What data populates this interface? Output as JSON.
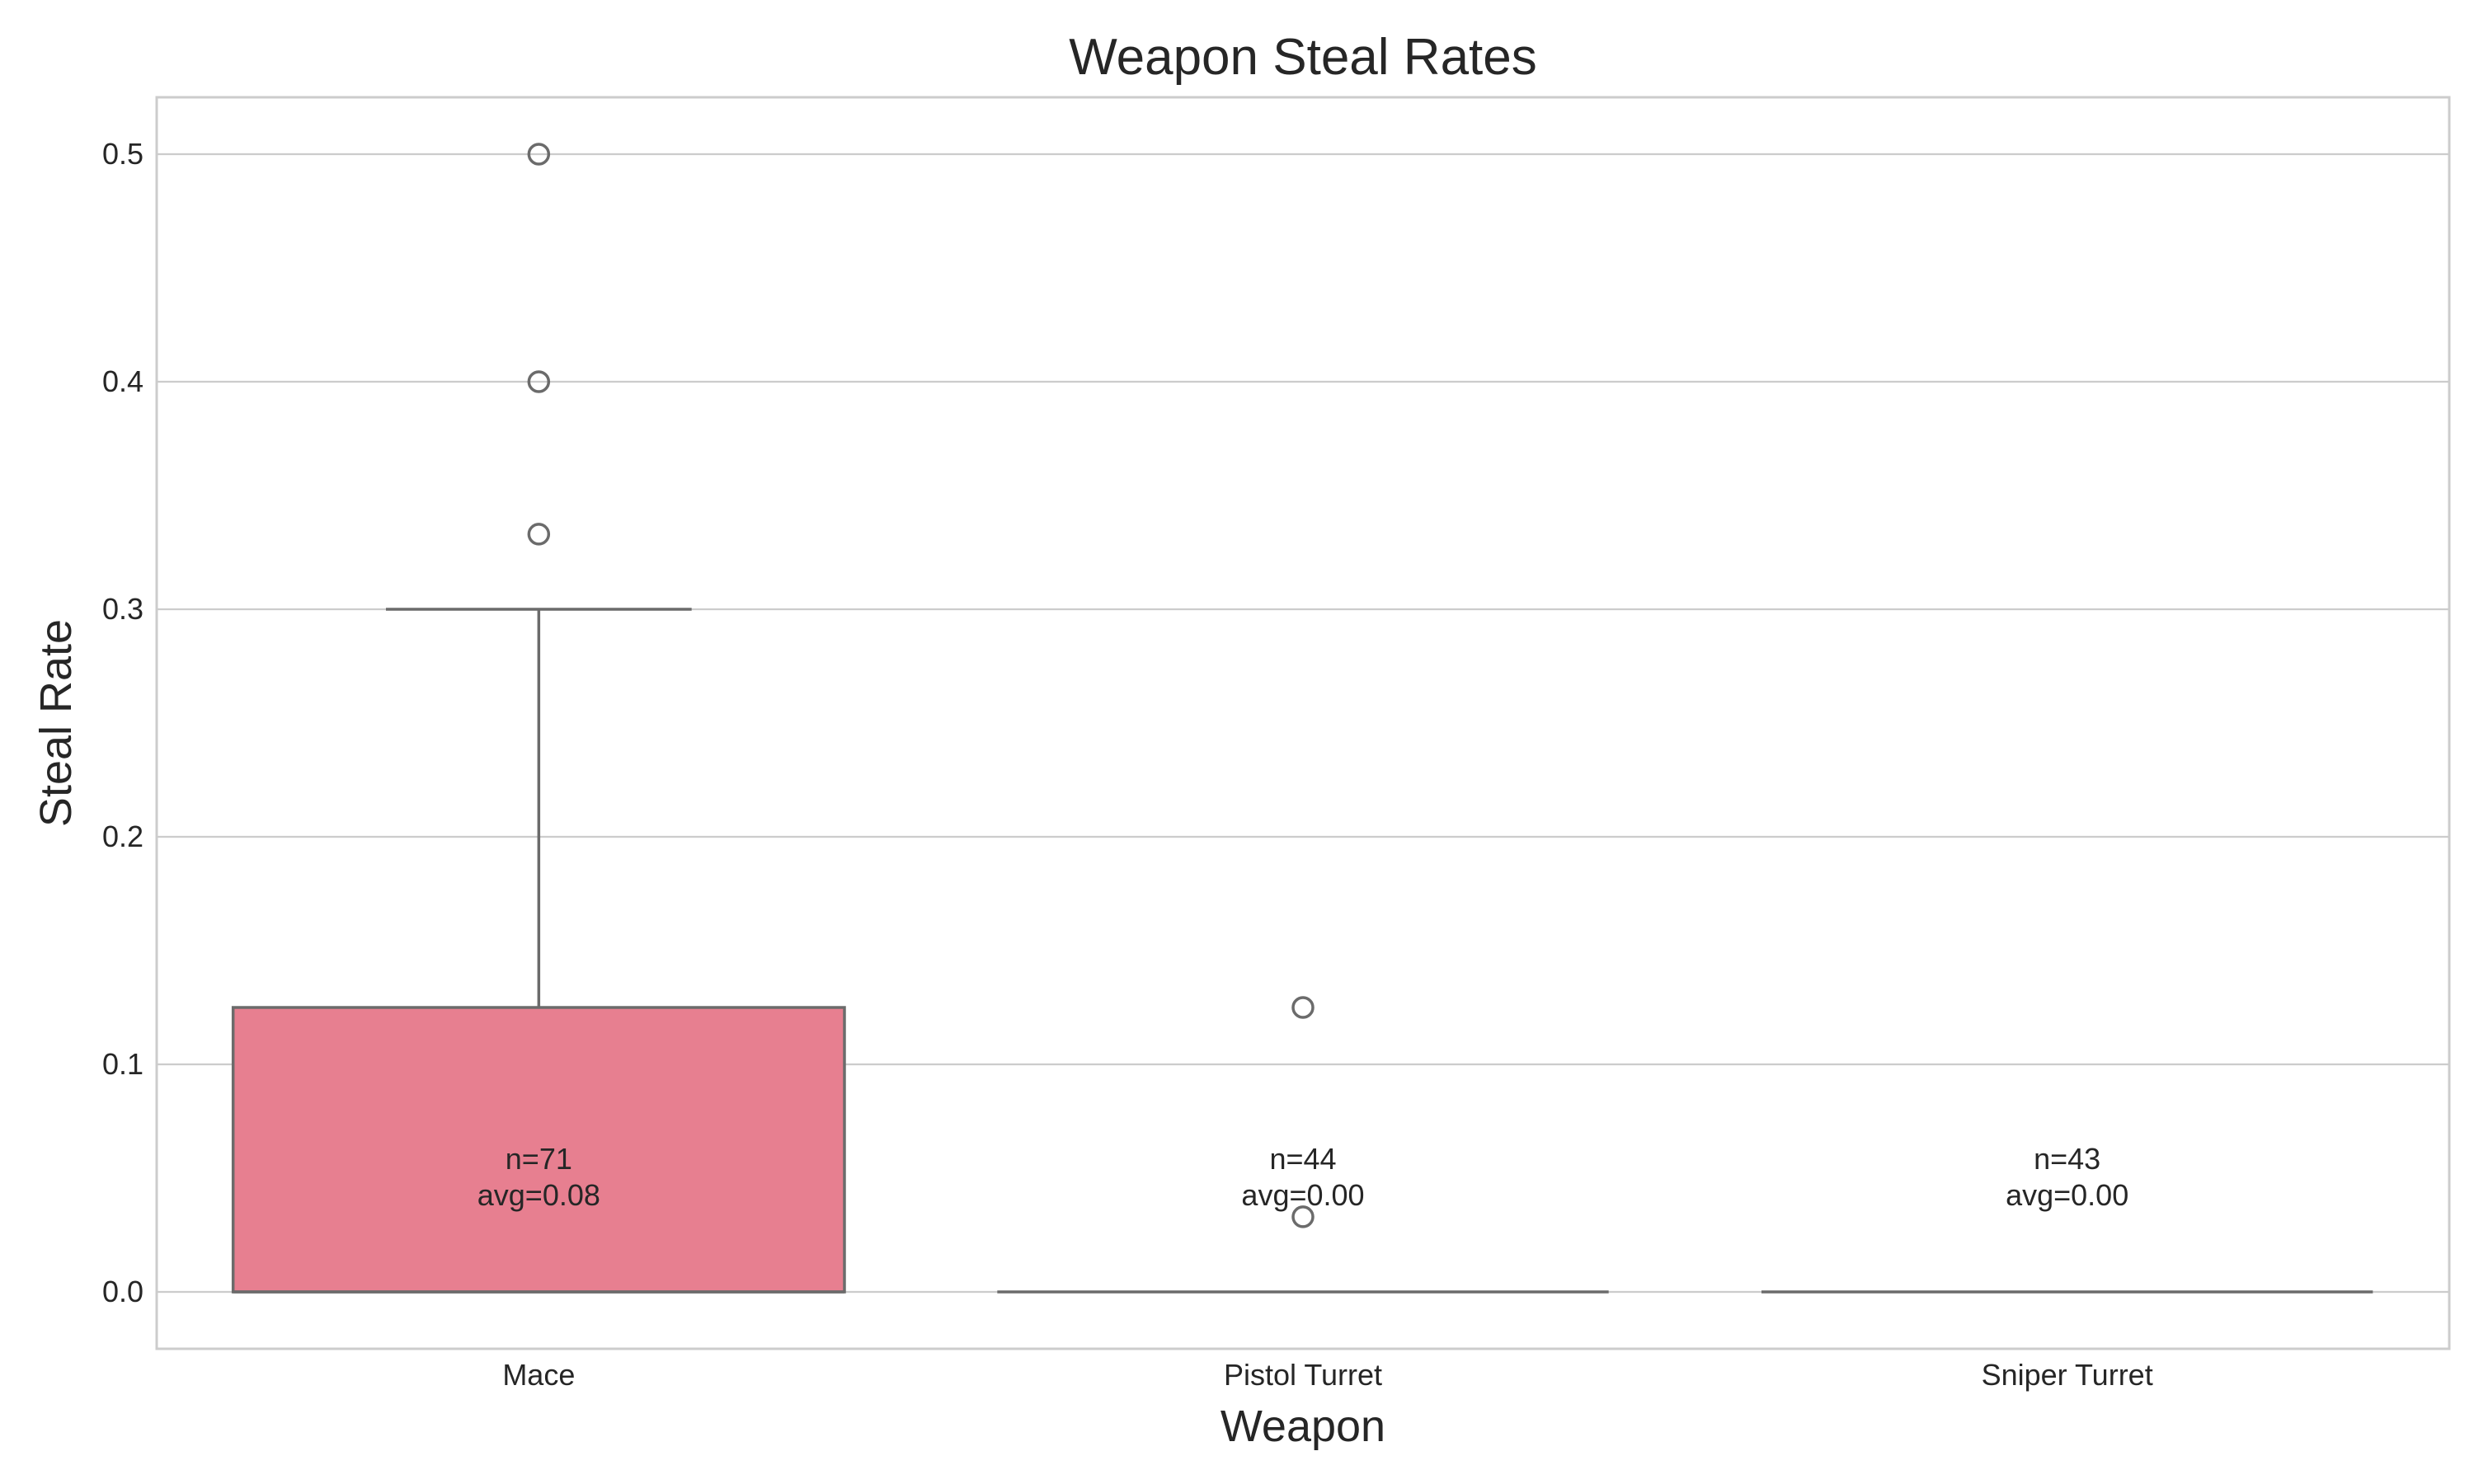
{
  "chart_data": {
    "type": "box",
    "title": "Weapon Steal Rates",
    "xlabel": "Weapon",
    "ylabel": "Steal Rate",
    "ylim": [
      -0.025,
      0.525
    ],
    "yticks": [
      0.0,
      0.1,
      0.2,
      0.3,
      0.4,
      0.5
    ],
    "ytick_labels": [
      "0.0",
      "0.1",
      "0.2",
      "0.3",
      "0.4",
      "0.5"
    ],
    "grid": true,
    "categories": [
      "Mace",
      "Pistol Turret",
      "Sniper Turret"
    ],
    "boxes": [
      {
        "category": "Mace",
        "q1": 0.0,
        "median": 0.0,
        "q3": 0.125,
        "whisker_low": 0.0,
        "whisker_high": 0.3,
        "outliers": [
          0.333,
          0.4,
          0.5
        ],
        "n_label": "n=71",
        "avg_label": "avg=0.08",
        "color": "#e77f90"
      },
      {
        "category": "Pistol Turret",
        "q1": 0.0,
        "median": 0.0,
        "q3": 0.0,
        "whisker_low": 0.0,
        "whisker_high": 0.0,
        "outliers": [
          0.033,
          0.125
        ],
        "n_label": "n=44",
        "avg_label": "avg=0.00",
        "color": "#5fb35a"
      },
      {
        "category": "Sniper Turret",
        "q1": 0.0,
        "median": 0.0,
        "q3": 0.0,
        "whisker_low": 0.0,
        "whisker_high": 0.0,
        "outliers": [],
        "n_label": "n=43",
        "avg_label": "avg=0.00",
        "color": "#5aa0d8"
      }
    ]
  }
}
